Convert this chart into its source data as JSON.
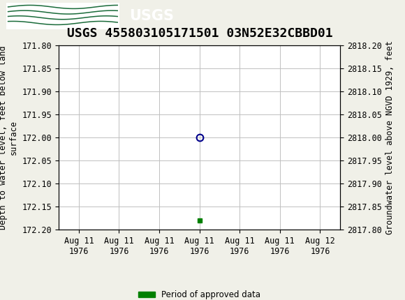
{
  "title": "USGS 455803105171501 03N52E32CBBD01",
  "ylabel_left": "Depth to water level, feet below land\nsurface",
  "ylabel_right": "Groundwater level above NGVD 1929, feet",
  "ylim_left": [
    172.2,
    171.8
  ],
  "ylim_right": [
    2817.8,
    2818.2
  ],
  "y_ticks_left": [
    171.8,
    171.85,
    171.9,
    171.95,
    172.0,
    172.05,
    172.1,
    172.15,
    172.2
  ],
  "y_ticks_right": [
    2817.8,
    2817.85,
    2817.9,
    2817.95,
    2818.0,
    2818.05,
    2818.1,
    2818.15,
    2818.2
  ],
  "data_point_x": 12,
  "data_point_y": 172.0,
  "approved_point_x": 12,
  "approved_point_y": 172.18,
  "x_ticks": [
    0,
    4,
    8,
    12,
    16,
    20,
    24
  ],
  "x_tick_labels": [
    "Aug 11\n1976",
    "Aug 11\n1976",
    "Aug 11\n1976",
    "Aug 11\n1976",
    "Aug 11\n1976",
    "Aug 11\n1976",
    "Aug 12\n1976"
  ],
  "xlim": [
    -2,
    26
  ],
  "header_color": "#1a6b3a",
  "background_color": "#f0f0e8",
  "plot_bg_color": "#ffffff",
  "grid_color": "#c0c0c0",
  "open_circle_color": "#00008b",
  "approved_square_color": "#008000",
  "legend_label": "Period of approved data",
  "title_fontsize": 13,
  "tick_fontsize": 8.5,
  "label_fontsize": 8.5
}
